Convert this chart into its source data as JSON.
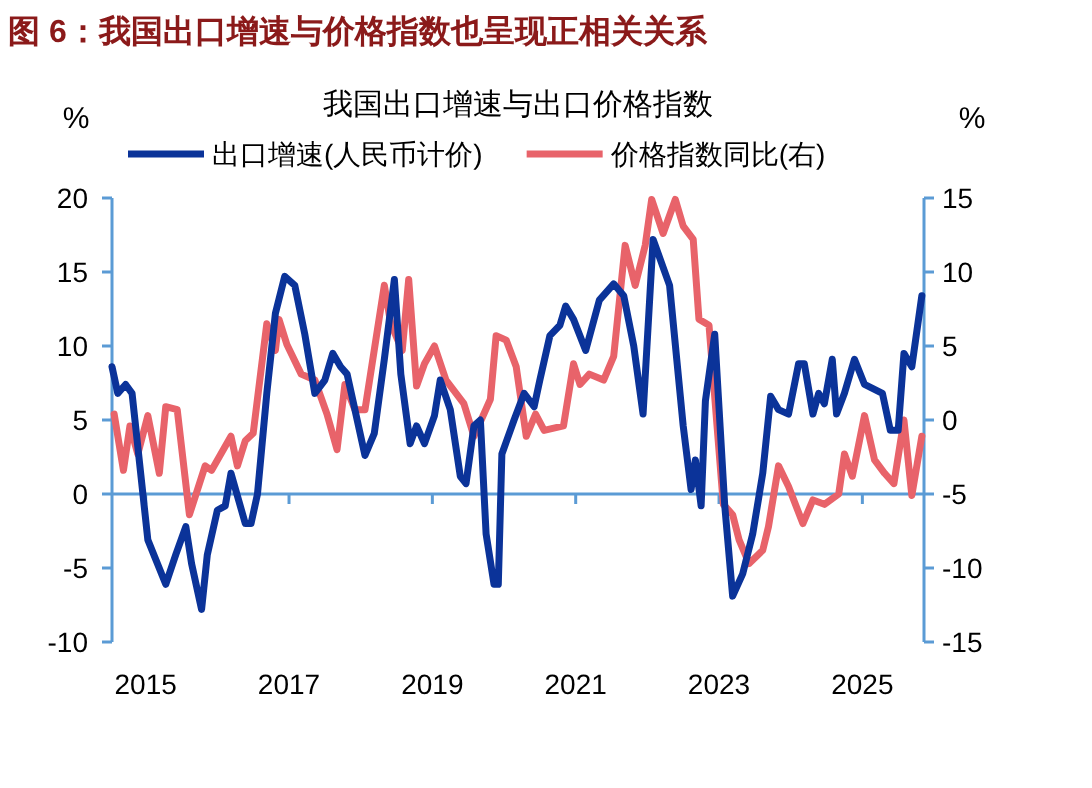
{
  "chart_data": {
    "type": "line",
    "title": "图 6：我国出口增速与价格指数也呈现正相关关系",
    "subtitle": "我国出口增速与出口价格指数",
    "ylabel": "%",
    "y2label": "%",
    "xlim": [
      2014.53,
      2025.86
    ],
    "xticks": [
      2015,
      2017,
      2019,
      2021,
      2023,
      2025
    ],
    "ylim": [
      -10,
      20
    ],
    "yticks": [
      -10,
      -5,
      0,
      5,
      10,
      15,
      20
    ],
    "y2lim": [
      -15,
      15
    ],
    "y2ticks": [
      -15,
      -10,
      -5,
      0,
      5,
      10,
      15
    ],
    "ref_lines": [
      {
        "axis": "y",
        "value": 0,
        "color": "#5b9bd5"
      }
    ],
    "legend": "top",
    "grid": false,
    "line_style": "solid",
    "marker": "none",
    "series": [
      {
        "name": "出口增速(人民币计价)",
        "color": "#0b3399",
        "x": [
          2014.53,
          2014.61,
          2014.72,
          2014.81,
          2014.89,
          2015.03,
          2015.28,
          2015.42,
          2015.56,
          2015.64,
          2015.78,
          2015.86,
          2016.0,
          2016.11,
          2016.19,
          2016.39,
          2016.47,
          2016.56,
          2016.69,
          2016.81,
          2016.94,
          2017.08,
          2017.22,
          2017.36,
          2017.5,
          2017.61,
          2017.72,
          2017.81,
          2018.06,
          2018.19,
          2018.33,
          2018.47,
          2018.56,
          2018.69,
          2018.78,
          2018.89,
          2019.03,
          2019.11,
          2019.25,
          2019.39,
          2019.47,
          2019.58,
          2019.67,
          2019.75,
          2019.86,
          2019.92,
          2019.97,
          2020.14,
          2020.28,
          2020.42,
          2020.5,
          2020.64,
          2020.78,
          2020.86,
          2020.97,
          2021.14,
          2021.33,
          2021.53,
          2021.67,
          2021.81,
          2021.94,
          2022.08,
          2022.31,
          2022.5,
          2022.61,
          2022.67,
          2022.75,
          2022.81,
          2022.94,
          2023.08,
          2023.19,
          2023.33,
          2023.47,
          2023.61,
          2023.72,
          2023.83,
          2023.97,
          2024.11,
          2024.19,
          2024.31,
          2024.39,
          2024.47,
          2024.58,
          2024.64,
          2024.75,
          2024.89,
          2025.03,
          2025.28,
          2025.39,
          2025.5,
          2025.58,
          2025.69,
          2025.83
        ],
        "values": [
          8.6,
          6.8,
          7.4,
          6.8,
          3.2,
          -3.1,
          -6.1,
          -4.1,
          -2.2,
          -4.7,
          -7.8,
          -4.1,
          -1.1,
          -0.8,
          1.4,
          -2.0,
          -2.0,
          0,
          6.8,
          12.2,
          14.7,
          14.1,
          10.8,
          6.8,
          7.7,
          9.5,
          8.6,
          8.1,
          2.6,
          4.1,
          9.1,
          14.5,
          8.1,
          3.4,
          4.6,
          3.4,
          5.3,
          7.7,
          5.7,
          1.2,
          0.7,
          4.6,
          5.0,
          -2.7,
          -6.1,
          -6.1,
          2.7,
          5.0,
          6.8,
          5.9,
          7.7,
          10.7,
          11.4,
          12.7,
          11.8,
          9.7,
          13.1,
          14.2,
          13.4,
          10.0,
          5.4,
          17.2,
          14.1,
          4.6,
          0.3,
          2.3,
          -0.8,
          6.3,
          10.8,
          -0.8,
          -6.9,
          -5.4,
          -2.7,
          1.4,
          6.6,
          5.7,
          5.4,
          8.8,
          8.8,
          5.4,
          6.8,
          6.1,
          9.1,
          5.4,
          6.8,
          9.1,
          7.4,
          6.8,
          4.3,
          4.3,
          9.5,
          8.6,
          13.4
        ]
      },
      {
        "name": "价格指数同比(右)",
        "color": "#e8636a",
        "axis": "y2",
        "x": [
          2014.56,
          2014.69,
          2014.78,
          2014.89,
          2015.03,
          2015.19,
          2015.28,
          2015.44,
          2015.61,
          2015.83,
          2015.92,
          2016.19,
          2016.28,
          2016.39,
          2016.5,
          2016.69,
          2016.81,
          2016.86,
          2016.97,
          2017.17,
          2017.36,
          2017.53,
          2017.67,
          2017.78,
          2017.92,
          2018.06,
          2018.33,
          2018.42,
          2018.58,
          2018.67,
          2018.78,
          2018.89,
          2019.03,
          2019.19,
          2019.44,
          2019.58,
          2019.81,
          2019.89,
          2020.03,
          2020.17,
          2020.31,
          2020.44,
          2020.56,
          2020.83,
          2020.97,
          2021.06,
          2021.19,
          2021.39,
          2021.53,
          2021.69,
          2021.83,
          2021.97,
          2022.06,
          2022.22,
          2022.39,
          2022.5,
          2022.64,
          2022.72,
          2022.86,
          2023.06,
          2023.19,
          2023.28,
          2023.42,
          2023.61,
          2023.69,
          2023.83,
          2023.97,
          2024.17,
          2024.31,
          2024.47,
          2024.67,
          2024.75,
          2024.86,
          2025.03,
          2025.17,
          2025.31,
          2025.44,
          2025.58,
          2025.69,
          2025.83
        ],
        "values": [
          0.4,
          -3.4,
          -0.4,
          -2.3,
          0.3,
          -3.6,
          0.9,
          0.7,
          -6.4,
          -3.1,
          -3.4,
          -1.1,
          -3.1,
          -1.4,
          -0.9,
          6.5,
          4.7,
          6.8,
          5.1,
          3.1,
          2.7,
          0.4,
          -2.0,
          2.4,
          0.7,
          0.7,
          9.1,
          6.5,
          4.7,
          9.5,
          2.3,
          3.8,
          5.0,
          2.7,
          1.1,
          -1.1,
          1.4,
          5.7,
          5.4,
          3.6,
          -1.1,
          0.4,
          -0.7,
          -0.4,
          3.8,
          2.4,
          3.1,
          2.7,
          4.3,
          11.8,
          9.1,
          11.8,
          14.9,
          12.6,
          14.9,
          13.1,
          12.2,
          6.8,
          6.4,
          -5.7,
          -6.4,
          -8.1,
          -9.7,
          -8.8,
          -7.2,
          -3.1,
          -4.5,
          -7.0,
          -5.4,
          -5.7,
          -5.0,
          -2.3,
          -3.8,
          0.3,
          -2.7,
          -3.6,
          -4.3,
          0,
          -5.1,
          -1.1
        ]
      }
    ]
  }
}
